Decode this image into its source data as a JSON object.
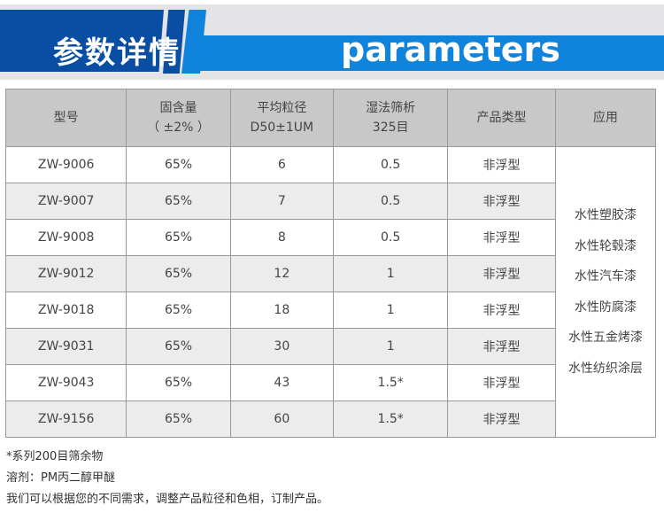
{
  "banner": {
    "title_cn": "参数详情",
    "title_en": "parameters",
    "colors": {
      "dark_blue": "#0a4ea3",
      "light_blue": "#1083dc"
    }
  },
  "table": {
    "headers": [
      [
        "型号"
      ],
      [
        "固含量",
        "（ ±2% ）"
      ],
      [
        "平均粒径",
        "D50±1UM"
      ],
      [
        "湿法筛析",
        "325目"
      ],
      [
        "产品类型"
      ],
      [
        "应用"
      ]
    ],
    "rows": [
      [
        "ZW-9006",
        "65%",
        "6",
        "0.5",
        "非浮型"
      ],
      [
        "ZW-9007",
        "65%",
        "7",
        "0.5",
        "非浮型"
      ],
      [
        "ZW-9008",
        "65%",
        "8",
        "0.5",
        "非浮型"
      ],
      [
        "ZW-9012",
        "65%",
        "12",
        "1",
        "非浮型"
      ],
      [
        "ZW-9018",
        "65%",
        "18",
        "1",
        "非浮型"
      ],
      [
        "ZW-9031",
        "65%",
        "30",
        "1",
        "非浮型"
      ],
      [
        "ZW-9043",
        "65%",
        "43",
        "1.5*",
        "非浮型"
      ],
      [
        "ZW-9156",
        "65%",
        "60",
        "1.5*",
        "非浮型"
      ]
    ],
    "applications": [
      "水性塑胶漆",
      "水性轮毂漆",
      "水性汽车漆",
      "水性防腐漆",
      "水性五金烤漆",
      "水性纺织涂层"
    ]
  },
  "notes": [
    "*系列200目筛余物",
    "溶剂：PM丙二醇甲醚",
    "我们可以根据您的不同需求，调整产品粒径和色相，订制产品。"
  ]
}
